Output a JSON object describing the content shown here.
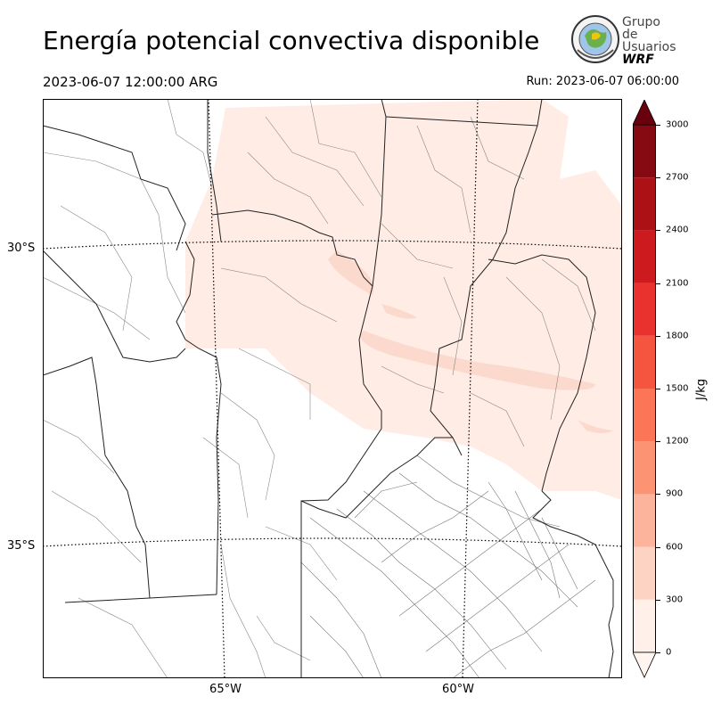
{
  "header": {
    "title": "Energía potencial convectiva disponible",
    "valid_time": "2023-06-07 12:00:00 ARG",
    "run_time": "Run: 2023-06-07 06:00:00"
  },
  "logo": {
    "line1": "Grupo de",
    "line2": "Usuarios",
    "line3": "WRF"
  },
  "map": {
    "latitude_labels": [
      "30°S",
      "35°S"
    ],
    "longitude_labels": [
      "65°W",
      "60°W"
    ],
    "field": "CAPE",
    "max_shaded_bin": "0-300"
  },
  "colorbar": {
    "unit": "J/kg",
    "ticks": [
      "0",
      "300",
      "600",
      "900",
      "1200",
      "1500",
      "1800",
      "2100",
      "2400",
      "2700",
      "3000"
    ],
    "colors": [
      "#fff0ea",
      "#fdd4c4",
      "#fcb59c",
      "#fc9474",
      "#fb7556",
      "#f5543e",
      "#e9322d",
      "#cd1a1f",
      "#ac1116",
      "#850a12",
      "#68000d"
    ]
  }
}
